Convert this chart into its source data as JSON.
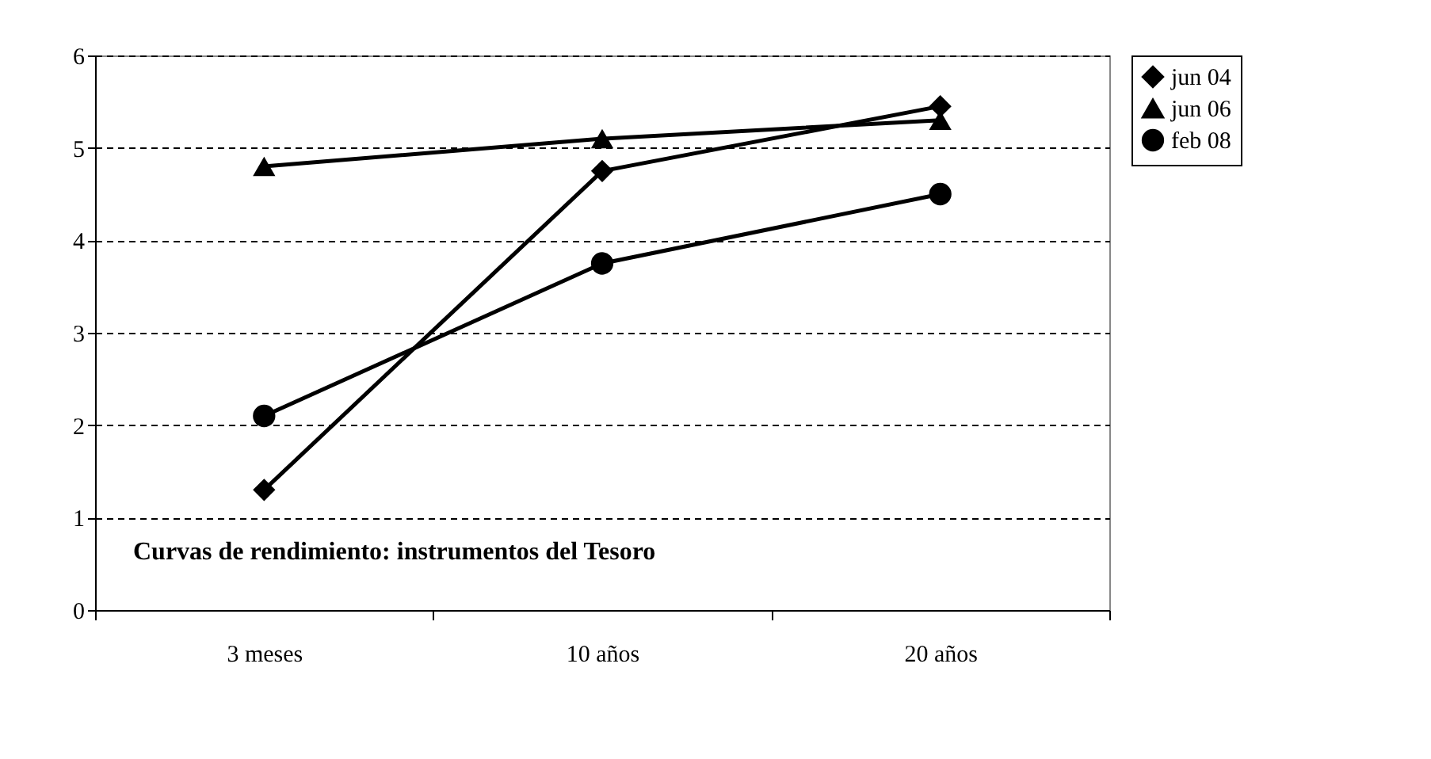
{
  "chart_data": {
    "type": "line",
    "categories": [
      "3 meses",
      "10 años",
      "20 años"
    ],
    "series": [
      {
        "name": "jun 04",
        "color": "#000000",
        "marker": "diamond",
        "values": [
          1.3,
          4.75,
          5.45
        ]
      },
      {
        "name": "jun 06",
        "color": "#000000",
        "marker": "triangle",
        "values": [
          4.8,
          5.1,
          5.3
        ]
      },
      {
        "name": "feb 08",
        "color": "#000000",
        "marker": "circle",
        "values": [
          2.1,
          3.75,
          4.5
        ]
      }
    ],
    "ylim": [
      0,
      6
    ],
    "yticks": [
      0,
      1,
      2,
      3,
      4,
      5,
      6
    ],
    "grid": "y",
    "legend": "right",
    "line_style": "solid",
    "annotations": [
      "Curvas de rendimiento: instrumentos del Tesoro"
    ]
  }
}
